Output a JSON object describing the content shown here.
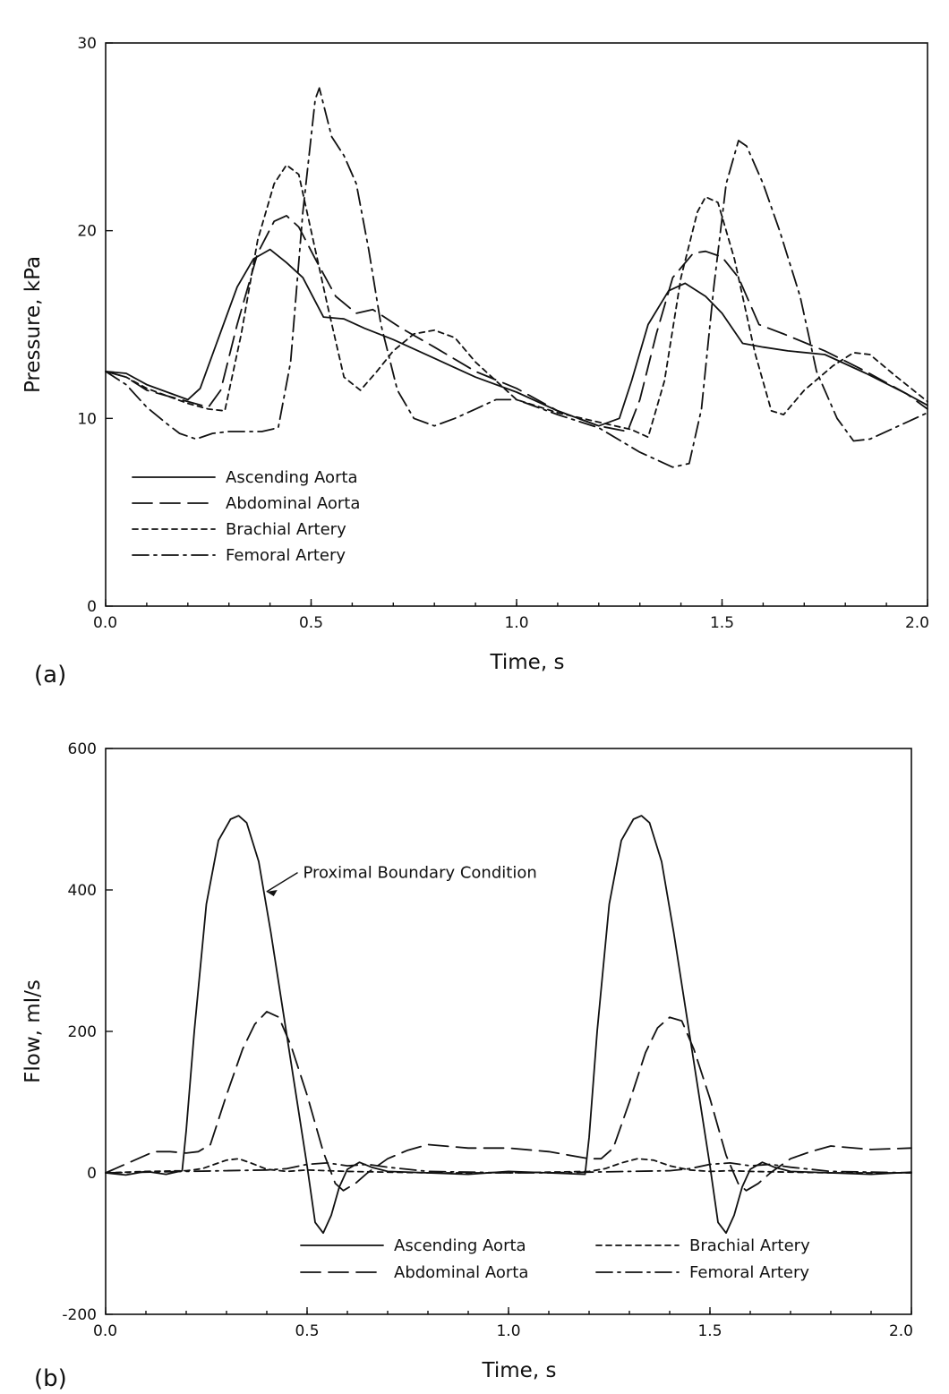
{
  "chart_data": [
    {
      "type": "line",
      "panel_label": "(a)",
      "xlabel": "Time, s",
      "ylabel": "Pressure, kPa",
      "xlim": [
        0,
        2
      ],
      "ylim": [
        0,
        30
      ],
      "x_ticks": [
        0.0,
        0.5,
        1.0,
        1.5,
        2.0
      ],
      "x_tick_labels": [
        "0.0",
        "0.5",
        "1.0",
        "1.5",
        "2.0"
      ],
      "y_ticks": [
        0,
        10,
        20,
        30
      ],
      "y_tick_labels": [
        "0",
        "10",
        "20",
        "30"
      ],
      "grid": false,
      "legend_position": "lower-left",
      "legend_layout": "single-column",
      "series": [
        {
          "name": "Ascending Aorta",
          "dash": "solid",
          "x": [
            0,
            0.05,
            0.1,
            0.15,
            0.2,
            0.23,
            0.27,
            0.32,
            0.36,
            0.4,
            0.44,
            0.48,
            0.53,
            0.58,
            0.63,
            0.7,
            0.8,
            0.9,
            1.0,
            1.1,
            1.2,
            1.25,
            1.28,
            1.32,
            1.37,
            1.41,
            1.46,
            1.5,
            1.55,
            1.6,
            1.66,
            1.75,
            1.85,
            1.95,
            2.0
          ],
          "y": [
            12.5,
            12.4,
            11.8,
            11.4,
            11.0,
            11.6,
            14.0,
            17.0,
            18.5,
            19.0,
            18.3,
            17.5,
            15.4,
            15.3,
            14.8,
            14.2,
            13.2,
            12.2,
            11.4,
            10.4,
            9.6,
            10.0,
            12.0,
            15.0,
            16.8,
            17.2,
            16.5,
            15.6,
            14.0,
            13.8,
            13.6,
            13.4,
            12.4,
            11.3,
            10.7
          ]
        },
        {
          "name": "Abdominal Aorta",
          "dash": "long-dash",
          "x": [
            0,
            0.05,
            0.1,
            0.15,
            0.2,
            0.25,
            0.28,
            0.32,
            0.37,
            0.41,
            0.44,
            0.47,
            0.51,
            0.56,
            0.61,
            0.65,
            0.72,
            0.8,
            0.9,
            1.0,
            1.1,
            1.2,
            1.27,
            1.3,
            1.34,
            1.38,
            1.43,
            1.46,
            1.5,
            1.54,
            1.59,
            1.65,
            1.75,
            1.85,
            1.95,
            2.0
          ],
          "y": [
            12.5,
            12.2,
            11.5,
            11.2,
            10.9,
            10.6,
            11.5,
            15.0,
            18.8,
            20.5,
            20.8,
            20.2,
            18.5,
            16.5,
            15.6,
            15.8,
            14.8,
            13.8,
            12.5,
            11.6,
            10.4,
            9.6,
            9.3,
            11.0,
            14.5,
            17.5,
            18.8,
            18.9,
            18.6,
            17.5,
            15.0,
            14.5,
            13.6,
            12.5,
            11.3,
            10.5
          ]
        },
        {
          "name": "Brachial Artery",
          "dash": "short-dash",
          "x": [
            0,
            0.05,
            0.1,
            0.15,
            0.2,
            0.25,
            0.29,
            0.33,
            0.37,
            0.41,
            0.44,
            0.47,
            0.5,
            0.54,
            0.58,
            0.62,
            0.66,
            0.7,
            0.75,
            0.8,
            0.85,
            0.9,
            1.0,
            1.1,
            1.2,
            1.28,
            1.32,
            1.36,
            1.4,
            1.44,
            1.46,
            1.49,
            1.53,
            1.58,
            1.62,
            1.65,
            1.7,
            1.77,
            1.82,
            1.86,
            1.92,
            2.0
          ],
          "y": [
            12.5,
            12.2,
            11.6,
            11.2,
            10.8,
            10.5,
            10.4,
            14.5,
            19.5,
            22.5,
            23.5,
            23.0,
            20.0,
            16.0,
            12.2,
            11.5,
            12.5,
            13.6,
            14.5,
            14.7,
            14.3,
            13.0,
            11.0,
            10.3,
            9.8,
            9.4,
            9.0,
            12.0,
            17.5,
            21.0,
            21.8,
            21.5,
            18.5,
            13.5,
            10.4,
            10.2,
            11.5,
            12.8,
            13.5,
            13.4,
            12.3,
            10.9
          ]
        },
        {
          "name": "Femoral Artery",
          "dash": "dash-dot",
          "x": [
            0,
            0.05,
            0.1,
            0.15,
            0.18,
            0.22,
            0.26,
            0.3,
            0.34,
            0.38,
            0.42,
            0.45,
            0.48,
            0.51,
            0.52,
            0.55,
            0.58,
            0.61,
            0.64,
            0.67,
            0.71,
            0.75,
            0.8,
            0.85,
            0.9,
            0.95,
            1.0,
            1.1,
            1.2,
            1.3,
            1.38,
            1.42,
            1.45,
            1.48,
            1.51,
            1.54,
            1.56,
            1.6,
            1.64,
            1.69,
            1.73,
            1.78,
            1.82,
            1.86,
            1.92,
            2.0
          ],
          "y": [
            12.5,
            11.8,
            10.6,
            9.7,
            9.2,
            8.9,
            9.2,
            9.3,
            9.3,
            9.3,
            9.5,
            13.0,
            21.0,
            27.0,
            27.6,
            25.0,
            24.0,
            22.5,
            19.0,
            15.0,
            11.5,
            10.0,
            9.6,
            10.0,
            10.5,
            11.0,
            11.0,
            10.2,
            9.5,
            8.2,
            7.4,
            7.6,
            10.5,
            17.0,
            22.5,
            24.8,
            24.5,
            22.5,
            20.0,
            16.5,
            12.5,
            10.0,
            8.8,
            8.9,
            9.5,
            10.3
          ]
        }
      ]
    },
    {
      "type": "line",
      "panel_label": "(b)",
      "xlabel": "Time, s",
      "ylabel": "Flow, ml/s",
      "xlim": [
        0,
        2
      ],
      "ylim": [
        -200,
        600
      ],
      "x_ticks": [
        0.0,
        0.5,
        1.0,
        1.5,
        2.0
      ],
      "x_tick_labels": [
        "0.0",
        "0.5",
        "1.0",
        "1.5",
        "2.0"
      ],
      "y_ticks": [
        -200,
        0,
        200,
        400,
        600
      ],
      "y_tick_labels": [
        "-200",
        "0",
        "200",
        "400",
        "600"
      ],
      "grid": false,
      "legend_position": "bottom-center",
      "legend_layout": "two-column",
      "annotations": [
        {
          "text": "Proximal Boundary Condition",
          "arrow_to_x": 0.395,
          "arrow_to_y": 400,
          "text_x": 0.49,
          "text_y": 422
        }
      ],
      "series": [
        {
          "name": "Ascending Aorta",
          "dash": "solid",
          "x": [
            0,
            0.05,
            0.1,
            0.15,
            0.19,
            0.2,
            0.22,
            0.25,
            0.28,
            0.31,
            0.33,
            0.35,
            0.38,
            0.41,
            0.44,
            0.47,
            0.5,
            0.52,
            0.54,
            0.56,
            0.58,
            0.6,
            0.63,
            0.66,
            0.7,
            0.8,
            0.9,
            1.0,
            1.1,
            1.19,
            1.2,
            1.22,
            1.25,
            1.28,
            1.31,
            1.33,
            1.35,
            1.38,
            1.41,
            1.44,
            1.47,
            1.5,
            1.52,
            1.54,
            1.56,
            1.58,
            1.6,
            1.63,
            1.66,
            1.7,
            1.8,
            1.9,
            2.0
          ],
          "y": [
            0,
            -3,
            2,
            -2,
            3,
            60,
            200,
            380,
            470,
            500,
            505,
            495,
            440,
            340,
            230,
            120,
            10,
            -70,
            -85,
            -60,
            -20,
            5,
            15,
            8,
            2,
            0,
            -2,
            2,
            0,
            -2,
            50,
            200,
            380,
            470,
            500,
            505,
            495,
            440,
            340,
            230,
            120,
            10,
            -70,
            -85,
            -60,
            -20,
            5,
            15,
            8,
            2,
            0,
            -2,
            1
          ]
        },
        {
          "name": "Abdominal Aorta",
          "dash": "long-dash",
          "x": [
            0,
            0.04,
            0.08,
            0.12,
            0.16,
            0.2,
            0.23,
            0.26,
            0.3,
            0.34,
            0.37,
            0.4,
            0.43,
            0.46,
            0.5,
            0.54,
            0.57,
            0.59,
            0.62,
            0.65,
            0.7,
            0.75,
            0.8,
            0.9,
            1.0,
            1.1,
            1.2,
            1.23,
            1.26,
            1.3,
            1.34,
            1.37,
            1.4,
            1.43,
            1.46,
            1.5,
            1.54,
            1.57,
            1.59,
            1.62,
            1.65,
            1.7,
            1.75,
            1.8,
            1.9,
            2.0
          ],
          "y": [
            0,
            10,
            20,
            30,
            30,
            28,
            30,
            40,
            110,
            175,
            210,
            228,
            220,
            180,
            110,
            30,
            -15,
            -25,
            -15,
            0,
            20,
            32,
            40,
            35,
            35,
            30,
            20,
            20,
            35,
            100,
            170,
            205,
            220,
            215,
            175,
            105,
            25,
            -15,
            -25,
            -15,
            0,
            20,
            30,
            38,
            33,
            35
          ]
        },
        {
          "name": "Brachial Artery",
          "dash": "short-dash",
          "x": [
            0,
            0.1,
            0.2,
            0.24,
            0.27,
            0.3,
            0.33,
            0.36,
            0.4,
            0.45,
            0.5,
            0.55,
            0.6,
            0.7,
            0.8,
            0.9,
            1.0,
            1.1,
            1.2,
            1.24,
            1.28,
            1.32,
            1.36,
            1.4,
            1.45,
            1.5,
            1.55,
            1.6,
            1.7,
            1.8,
            1.9,
            2.0
          ],
          "y": [
            0,
            2,
            3,
            6,
            12,
            18,
            20,
            14,
            5,
            2,
            4,
            3,
            2,
            1,
            0,
            0,
            0,
            1,
            2,
            6,
            14,
            20,
            18,
            10,
            4,
            2,
            3,
            2,
            1,
            0,
            0,
            0
          ]
        },
        {
          "name": "Femoral Artery",
          "dash": "dash-dot",
          "x": [
            0,
            0.1,
            0.2,
            0.3,
            0.4,
            0.45,
            0.5,
            0.55,
            0.6,
            0.65,
            0.7,
            0.75,
            0.8,
            0.9,
            1.0,
            1.1,
            1.2,
            1.3,
            1.4,
            1.45,
            1.5,
            1.55,
            1.6,
            1.65,
            1.7,
            1.75,
            1.8,
            1.9,
            2.0
          ],
          "y": [
            0,
            1,
            2,
            3,
            4,
            6,
            12,
            14,
            10,
            12,
            8,
            5,
            2,
            1,
            0,
            0,
            1,
            2,
            3,
            6,
            12,
            14,
            10,
            12,
            8,
            5,
            2,
            1,
            0
          ]
        }
      ]
    }
  ]
}
